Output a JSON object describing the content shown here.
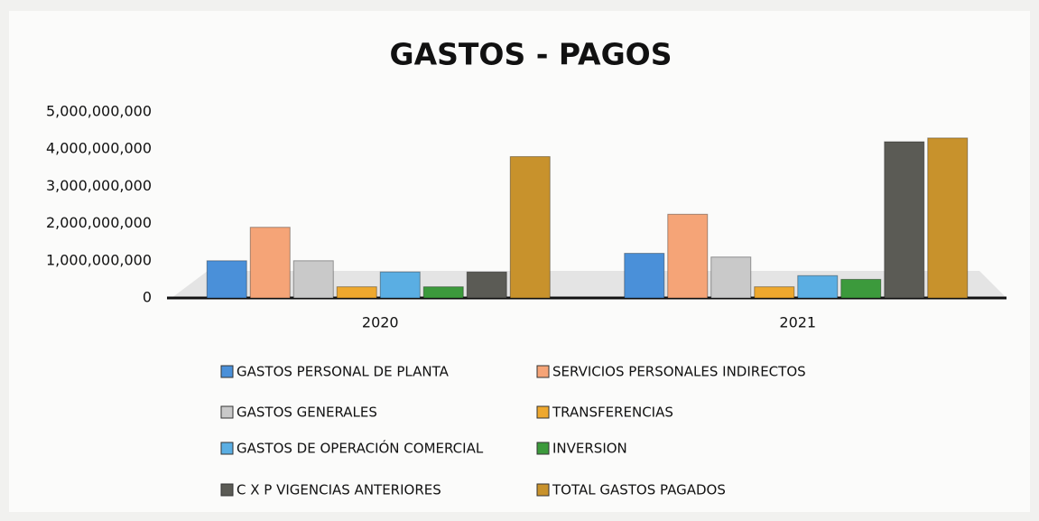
{
  "chart_data": {
    "type": "bar",
    "title": "GASTOS - PAGOS",
    "categories": [
      "2020",
      "2021"
    ],
    "series": [
      {
        "name": "GASTOS PERSONAL DE PLANTA",
        "color": "#4a90d9",
        "values": [
          1000000000,
          1200000000
        ]
      },
      {
        "name": "SERVICIOS PERSONALES INDIRECTOS",
        "color": "#f5a477",
        "values": [
          1900000000,
          2250000000
        ]
      },
      {
        "name": "GASTOS GENERALES",
        "color": "#c9c9c9",
        "values": [
          1000000000,
          1100000000
        ]
      },
      {
        "name": "TRANSFERENCIAS",
        "color": "#eea82e",
        "values": [
          300000000,
          300000000
        ]
      },
      {
        "name": "GASTOS DE OPERACIÓN COMERCIAL",
        "color": "#5aaee3",
        "values": [
          700000000,
          600000000
        ]
      },
      {
        "name": "INVERSION",
        "color": "#3c9a3c",
        "values": [
          300000000,
          500000000
        ]
      },
      {
        "name": "C X P VIGENCIAS ANTERIORES",
        "color": "#5b5b55",
        "values": [
          700000000,
          4200000000
        ]
      },
      {
        "name": "TOTAL GASTOS PAGADOS",
        "color": "#c8922c",
        "values": [
          3800000000,
          4300000000
        ]
      }
    ],
    "ylim": [
      0,
      5000000000
    ],
    "yticks": [
      0,
      {
        "value": 1000000000,
        "label": "1,000,000,000"
      },
      {
        "value": 2000000000,
        "label": "2,000,000,000"
      },
      {
        "value": 3000000000,
        "label": "3,000,000,000"
      },
      {
        "value": 4000000000,
        "label": "4,000,000,000"
      },
      {
        "value": 5000000000,
        "label": "5,000,000,000"
      }
    ],
    "grid": false
  }
}
